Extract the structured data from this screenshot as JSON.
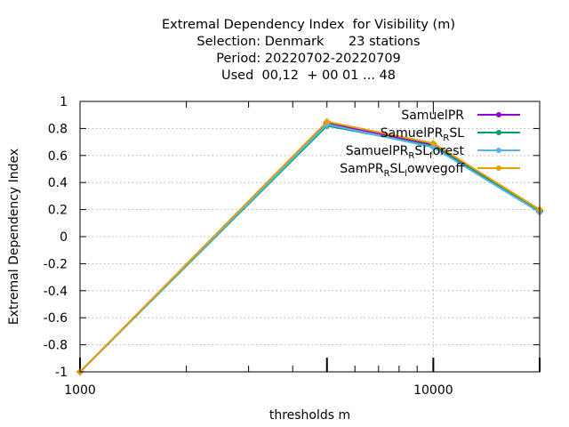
{
  "chart_data": {
    "type": "line",
    "title_lines": [
      "Extremal Dependency Index  for Visibility (m)",
      "Selection: Denmark      23 stations",
      "Period: 20220702-20220709",
      "Used  00,12  + 00 01 ... 48"
    ],
    "xlabel": "thresholds m",
    "ylabel": "Extremal Dependency Index",
    "x_scale": "log",
    "xlim": [
      1000,
      20000
    ],
    "ylim": [
      -1,
      1
    ],
    "x_ticks": [
      {
        "value": 1000,
        "label": "1000"
      },
      {
        "value": 10000,
        "label": "10000"
      }
    ],
    "y_ticks": [
      {
        "value": 1,
        "label": "1"
      },
      {
        "value": 0.8,
        "label": "0.8"
      },
      {
        "value": 0.6,
        "label": "0.6"
      },
      {
        "value": 0.4,
        "label": "0.4"
      },
      {
        "value": 0.2,
        "label": "0.2"
      },
      {
        "value": 0,
        "label": "0"
      },
      {
        "value": -0.2,
        "label": "-0.2"
      },
      {
        "value": -0.4,
        "label": "-0.4"
      },
      {
        "value": -0.6,
        "label": "-0.6"
      },
      {
        "value": -0.8,
        "label": "-0.8"
      },
      {
        "value": -1,
        "label": "-1"
      }
    ],
    "grid": true,
    "legend_position": "top-right",
    "x": [
      1000,
      5000,
      10000,
      20000
    ],
    "series": [
      {
        "name_base": "SamuelPR",
        "name_sub": "",
        "name_rest": "",
        "color": "#9400d3",
        "values": [
          -1.0,
          0.84,
          0.68,
          0.19
        ]
      },
      {
        "name_base": "SamuelPR",
        "name_sub": "R",
        "name_rest": "SL",
        "color": "#009e73",
        "values": [
          -1.0,
          0.82,
          0.67,
          0.19
        ]
      },
      {
        "name_base": "SamuelPR",
        "name_sub": "R",
        "name_rest": "SL",
        "name_sub2": "f",
        "name_rest2": "orest",
        "color": "#56b4e9",
        "values": [
          -1.0,
          0.83,
          0.66,
          0.18
        ]
      },
      {
        "name_base": "SamPR",
        "name_sub": "R",
        "name_rest": "SL",
        "name_sub2": "l",
        "name_rest2": "owvegoff",
        "color": "#e69f00",
        "values": [
          -1.0,
          0.85,
          0.69,
          0.2
        ]
      }
    ]
  }
}
